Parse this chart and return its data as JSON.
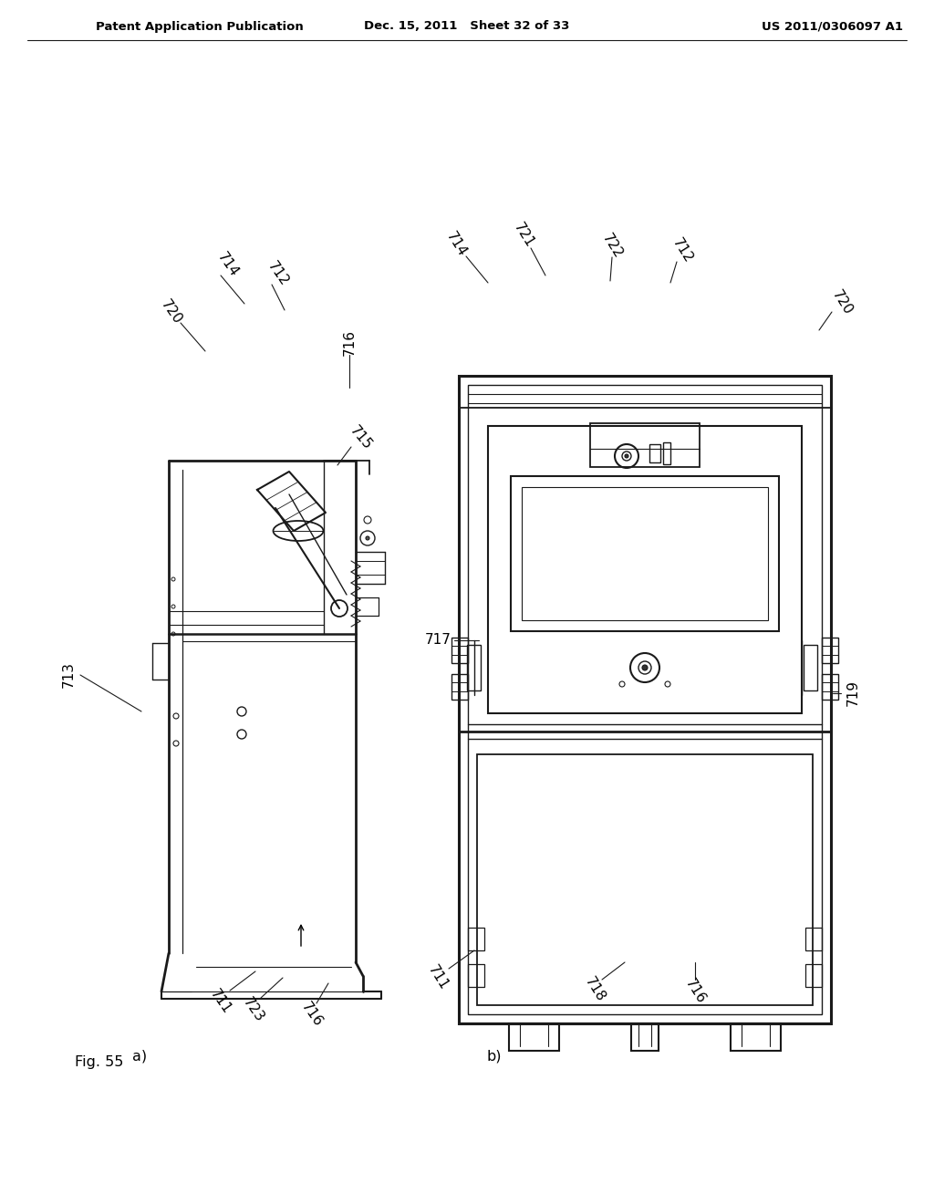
{
  "background_color": "#ffffff",
  "header_left": "Patent Application Publication",
  "header_center": "Dec. 15, 2011   Sheet 32 of 33",
  "header_right": "US 2011/0306097 A1",
  "fig_label": "Fig. 55",
  "sub_a": "a)",
  "sub_b": "b)"
}
